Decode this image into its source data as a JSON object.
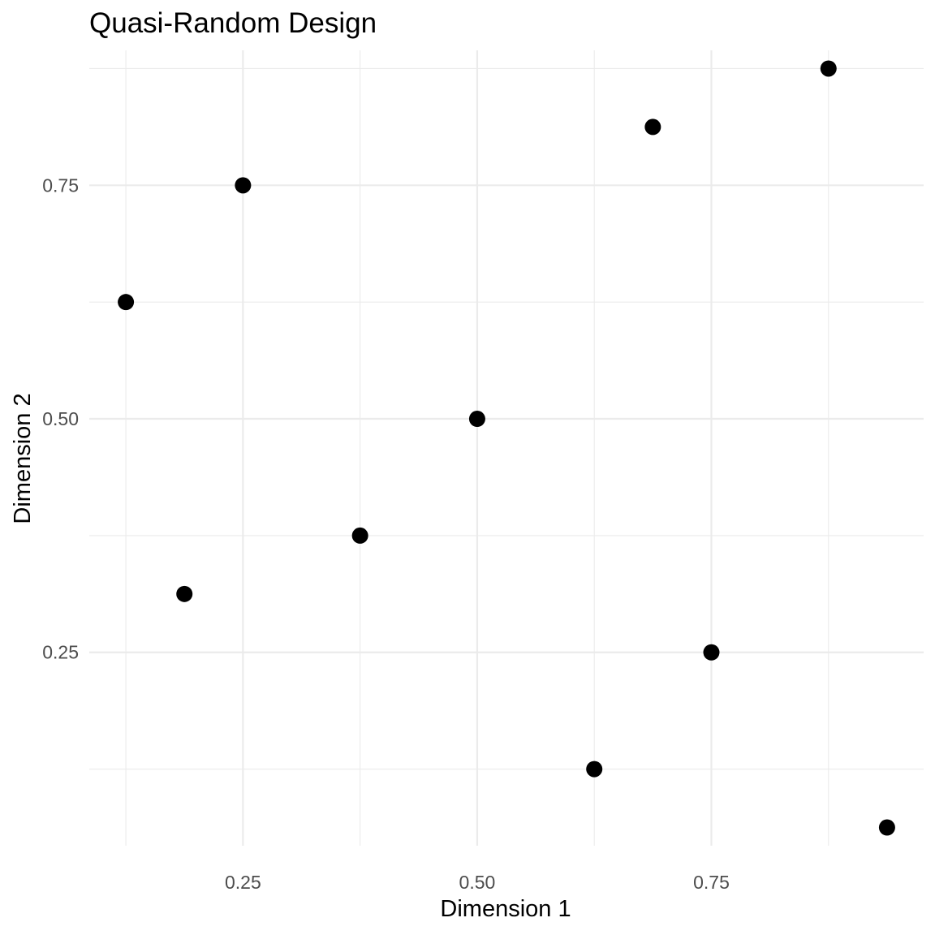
{
  "chart_data": {
    "type": "scatter",
    "title": "Quasi-Random Design",
    "xlabel": "Dimension 1",
    "ylabel": "Dimension 2",
    "xlim": [
      0.0859375,
      0.9765625
    ],
    "ylim": [
      0.0429688,
      0.8945313
    ],
    "x_ticks": [
      0.25,
      0.5,
      0.75
    ],
    "x_tick_labels": [
      "0.25",
      "0.50",
      "0.75"
    ],
    "y_ticks": [
      0.25,
      0.5,
      0.75
    ],
    "y_tick_labels": [
      "0.25",
      "0.50",
      "0.75"
    ],
    "x_minor": [
      0.125,
      0.375,
      0.625,
      0.875
    ],
    "y_minor": [
      0.125,
      0.375,
      0.625,
      0.875
    ],
    "grid": true,
    "legend": "none",
    "point_color": "#000000",
    "points": [
      {
        "x": 0.5,
        "y": 0.5
      },
      {
        "x": 0.25,
        "y": 0.75
      },
      {
        "x": 0.75,
        "y": 0.25
      },
      {
        "x": 0.375,
        "y": 0.375
      },
      {
        "x": 0.875,
        "y": 0.875
      },
      {
        "x": 0.625,
        "y": 0.125
      },
      {
        "x": 0.125,
        "y": 0.625
      },
      {
        "x": 0.1875,
        "y": 0.3125
      },
      {
        "x": 0.6875,
        "y": 0.8125
      },
      {
        "x": 0.9375,
        "y": 0.0625
      }
    ]
  }
}
